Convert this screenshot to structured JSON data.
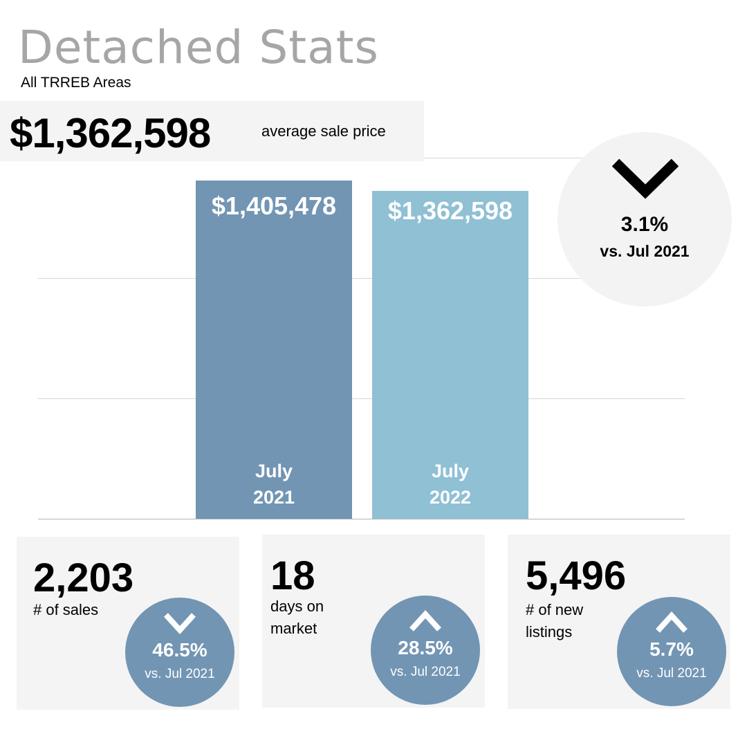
{
  "header": {
    "title": "Detached Stats",
    "subtitle": "All TRREB Areas"
  },
  "headline": {
    "value": "$1,362,598",
    "label": "average sale price"
  },
  "chart_data": {
    "type": "bar",
    "title": "",
    "xlabel": "",
    "ylabel": "",
    "categories": [
      "July 2021",
      "July 2022"
    ],
    "category_lines": [
      [
        "July",
        "2021"
      ],
      [
        "July",
        "2022"
      ]
    ],
    "values": [
      1405478,
      1362598
    ],
    "data_labels": [
      "$1,405,478",
      "$1,362,598"
    ],
    "colors": [
      "#7295b3",
      "#8fc0d4"
    ],
    "ylim": [
      0,
      1500000
    ],
    "gridlines": [
      0,
      500000,
      1000000,
      1500000
    ],
    "grid": true,
    "legend": "none"
  },
  "change": {
    "direction": "down",
    "pct": "3.1%",
    "vs": "vs. Jul 2021"
  },
  "cards": [
    {
      "value": "2,203",
      "label_lines": [
        "# of sales"
      ],
      "direction": "down",
      "pct": "46.5%",
      "vs": "vs. Jul 2021"
    },
    {
      "value": "18",
      "label_lines": [
        "days on",
        "market"
      ],
      "direction": "up",
      "pct": "28.5%",
      "vs": "vs. Jul 2021"
    },
    {
      "value": "5,496",
      "label_lines": [
        "# of new",
        "listings"
      ],
      "direction": "up",
      "pct": "5.7%",
      "vs": "vs. Jul 2021"
    }
  ],
  "colors": {
    "circle": "#7295b3",
    "title": "#a6a6a6",
    "panel": "#f4f4f4"
  }
}
